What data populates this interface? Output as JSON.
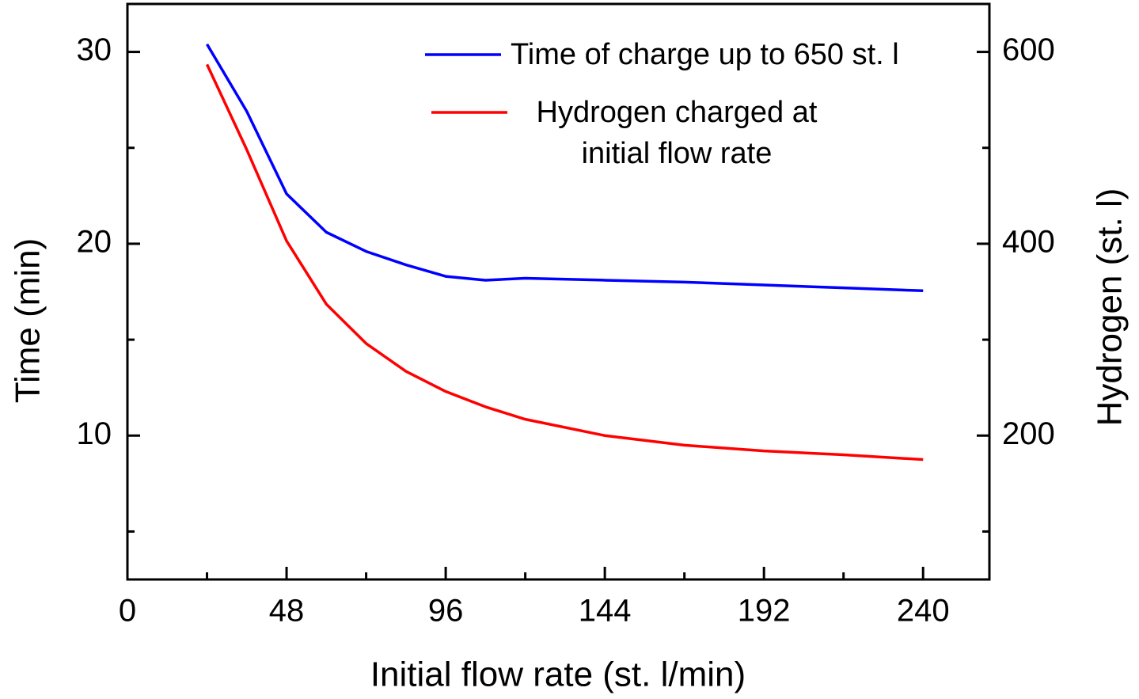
{
  "chart_data": {
    "type": "line",
    "xlabel": "Initial flow rate (st. l/min)",
    "ylabel": "Time (min)",
    "y2label": "Hydrogen (st. l)",
    "x": [
      24,
      36,
      48,
      60,
      72,
      84,
      96,
      108,
      120,
      144,
      168,
      192,
      216,
      240
    ],
    "series": [
      {
        "name": "Time of charge up to 650 st. l",
        "color": "#0000ff",
        "values": [
          30.4,
          26.9,
          22.6,
          20.6,
          19.6,
          18.9,
          18.3,
          18.1,
          18.2,
          18.1,
          18.0,
          17.85,
          17.7,
          17.55
        ]
      },
      {
        "name": "Hydrogen charged at\ninitial flow rate",
        "color": "#ff0000",
        "axis": "y2",
        "values": [
          587,
          498,
          403,
          337,
          296,
          267,
          246,
          230,
          217,
          200,
          190,
          184,
          180,
          175
        ]
      }
    ],
    "xlim": [
      0,
      260
    ],
    "xticks": [
      0,
      48,
      96,
      144,
      192,
      240
    ],
    "xminorticks": [
      24,
      72,
      120,
      168,
      216
    ],
    "ylim": [
      2.5,
      32.5
    ],
    "yticks": [
      10,
      20,
      30
    ],
    "yminorticks": [
      5,
      15,
      25
    ],
    "y2lim": [
      50,
      650
    ],
    "y2ticks": [
      200,
      400,
      600
    ],
    "y2minorticks": [
      100,
      300,
      500
    ],
    "grid": false
  }
}
